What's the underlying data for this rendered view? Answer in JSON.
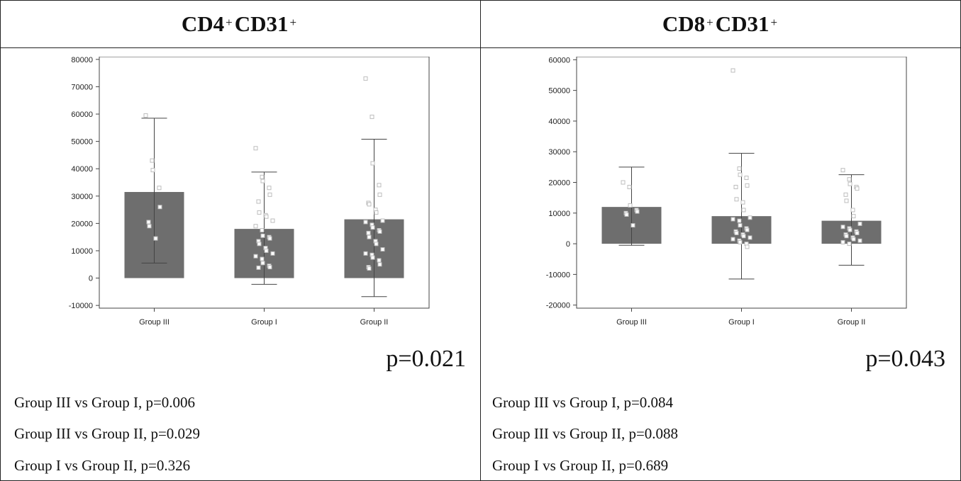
{
  "panels": [
    {
      "title_a": "CD4",
      "title_a_sup": "+",
      "title_b": "CD31",
      "title_b_sup": "+",
      "p_overall": "p=0.021",
      "comparisons": [
        "Group III vs Group I, p=0.006",
        "Group III vs Group II, p=0.029",
        "Group I vs Group II, p=0.326"
      ]
    },
    {
      "title_a": "CD8",
      "title_a_sup": "+",
      "title_b": "CD31",
      "title_b_sup": "+",
      "p_overall": "p=0.043",
      "comparisons": [
        "Group III vs Group I, p=0.084",
        "Group III vs Group II, p=0.088",
        "Group I vs Group II, p=0.689"
      ]
    }
  ],
  "colors": {
    "bar": "#6e6e6e",
    "point": "#bdbdbd",
    "axis": "#444444"
  },
  "chart_data": [
    {
      "type": "bar",
      "categories": [
        "Group III",
        "Group I",
        "Group II"
      ],
      "values": [
        31500,
        18000,
        21500
      ],
      "error_low": [
        5500,
        -2300,
        -6800
      ],
      "error_high": [
        58500,
        38800,
        50800
      ],
      "points": [
        [
          59500,
          43000,
          39500,
          33000,
          26000,
          20500,
          19000,
          14500
        ],
        [
          47500,
          37000,
          35500,
          33000,
          30500,
          28000,
          24000,
          23000,
          22500,
          21000,
          19000,
          17500,
          15500,
          15000,
          14500,
          13500,
          12500,
          11000,
          10000,
          9000,
          8000,
          7000,
          5500,
          4500,
          4000,
          3800
        ],
        [
          73000,
          59000,
          42000,
          34000,
          30500,
          27500,
          27000,
          25000,
          24000,
          21000,
          20500,
          19500,
          18500,
          17500,
          17000,
          16500,
          15000,
          13500,
          12500,
          10500,
          9000,
          8500,
          7500,
          6500,
          5000,
          4000,
          3500
        ]
      ],
      "yticks": [
        80000,
        70000,
        60000,
        50000,
        40000,
        30000,
        20000,
        10000,
        0,
        -10000
      ],
      "ylim": [
        -11000,
        81000
      ]
    },
    {
      "type": "bar",
      "categories": [
        "Group III",
        "Group I",
        "Group II"
      ],
      "values": [
        12000,
        9000,
        7500
      ],
      "error_low": [
        -500,
        -11500,
        -7000
      ],
      "error_high": [
        25000,
        29500,
        22500
      ],
      "points": [
        [
          20000,
          18500,
          12500,
          11000,
          10500,
          10000,
          9500,
          6000
        ],
        [
          56500,
          24500,
          22500,
          21500,
          19000,
          18500,
          14500,
          13500,
          11000,
          8500,
          8000,
          7500,
          6000,
          5000,
          4500,
          4000,
          3500,
          3000,
          2500,
          2000,
          1500,
          1000,
          500,
          0,
          -1000
        ],
        [
          24000,
          21000,
          19500,
          18500,
          18000,
          16000,
          14000,
          11000,
          9000,
          6500,
          5500,
          5000,
          4500,
          4000,
          3500,
          3000,
          2500,
          2000,
          1500,
          1000,
          500,
          0
        ]
      ],
      "yticks": [
        60000,
        50000,
        40000,
        30000,
        20000,
        10000,
        0,
        -10000,
        -20000
      ],
      "ylim": [
        -21000,
        61000
      ]
    }
  ]
}
